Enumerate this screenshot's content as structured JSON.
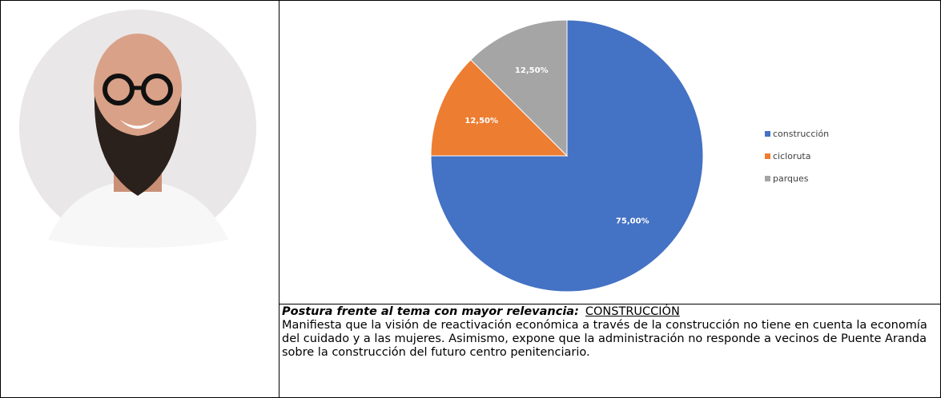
{
  "chart_data": {
    "type": "pie",
    "categories": [
      "construcción",
      "cicloruta",
      "parques"
    ],
    "values": [
      75,
      12.5,
      12.5
    ],
    "value_labels": [
      "75,00%",
      "12,50%",
      "12,50%"
    ],
    "colors": [
      "#4472c4",
      "#ed7d31",
      "#a5a5a5"
    ],
    "legend": "right"
  },
  "postura": {
    "label": "Postura frente al tema con mayor relevancia:",
    "tema": "CONSTRUCCIÓN",
    "body": "Manifiesta que la visión de reactivación económica a través de la construcción no tiene en cuenta la economía del cuidado y a las mujeres. Asimismo, expone que la administración no responde a vecinos de Puente Aranda sobre la construcción del futuro centro penitenciario."
  }
}
